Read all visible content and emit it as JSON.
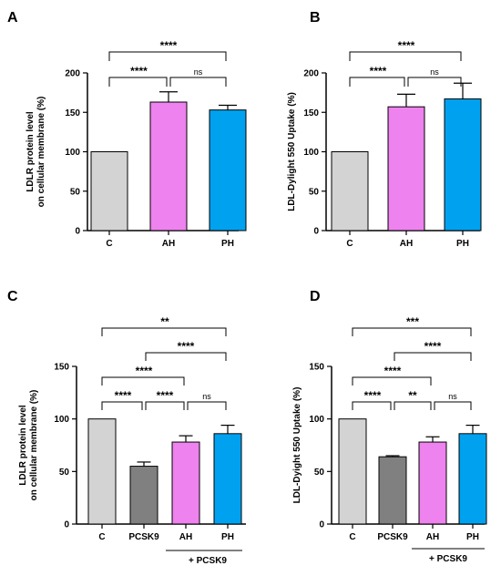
{
  "chart_data": [
    {
      "panel": "A",
      "type": "bar",
      "categories": [
        "C",
        "AH",
        "PH"
      ],
      "values": [
        100,
        163,
        153
      ],
      "errors": [
        0,
        13,
        6
      ],
      "colors": [
        "#d3d3d3",
        "#ee82ee",
        "#00a2f0"
      ],
      "ylabel": [
        "LDLR protein level",
        "on cellular membrane (%)"
      ],
      "ylim": [
        0,
        200
      ],
      "yticks": [
        0,
        50,
        100,
        150,
        200
      ],
      "comparisons": [
        {
          "from": 0,
          "to": 1,
          "label": "****"
        },
        {
          "from": 1,
          "to": 2,
          "label": "ns"
        },
        {
          "from": 0,
          "to": 2,
          "label": "****"
        }
      ]
    },
    {
      "panel": "B",
      "type": "bar",
      "categories": [
        "C",
        "AH",
        "PH"
      ],
      "values": [
        100,
        157,
        167
      ],
      "errors": [
        0,
        16,
        20
      ],
      "colors": [
        "#d3d3d3",
        "#ee82ee",
        "#00a2f0"
      ],
      "ylabel": [
        "LDL-Dylight 550 Uptake (%)"
      ],
      "ylim": [
        0,
        200
      ],
      "yticks": [
        0,
        50,
        100,
        150,
        200
      ],
      "comparisons": [
        {
          "from": 0,
          "to": 1,
          "label": "****"
        },
        {
          "from": 1,
          "to": 2,
          "label": "ns"
        },
        {
          "from": 0,
          "to": 2,
          "label": "****"
        }
      ]
    },
    {
      "panel": "C",
      "type": "bar",
      "categories": [
        "C",
        "PCSK9",
        "AH",
        "PH"
      ],
      "values": [
        100,
        55,
        78,
        86
      ],
      "errors": [
        0,
        4,
        6,
        8
      ],
      "colors": [
        "#d3d3d3",
        "#808080",
        "#ee82ee",
        "#00a2f0"
      ],
      "ylabel": [
        "LDLR protein level",
        "on cellular membrane (%)"
      ],
      "ylim": [
        0,
        150
      ],
      "yticks": [
        0,
        50,
        100,
        150
      ],
      "group_label": "+ PCSK9",
      "comparisons": [
        {
          "from": 0,
          "to": 1,
          "label": "****"
        },
        {
          "from": 1,
          "to": 2,
          "label": "****"
        },
        {
          "from": 2,
          "to": 3,
          "label": "ns"
        },
        {
          "from": 0,
          "to": 2,
          "label": "****"
        },
        {
          "from": 1,
          "to": 3,
          "label": "****"
        },
        {
          "from": 0,
          "to": 3,
          "label": "**"
        }
      ]
    },
    {
      "panel": "D",
      "type": "bar",
      "categories": [
        "C",
        "PCSK9",
        "AH",
        "PH"
      ],
      "values": [
        100,
        64,
        78,
        86
      ],
      "errors": [
        0,
        1,
        5,
        8
      ],
      "colors": [
        "#d3d3d3",
        "#808080",
        "#ee82ee",
        "#00a2f0"
      ],
      "ylabel": [
        "LDL-Dyight 550 Uptake (%)"
      ],
      "ylim": [
        0,
        150
      ],
      "yticks": [
        0,
        50,
        100,
        150
      ],
      "group_label": "+ PCSK9",
      "comparisons": [
        {
          "from": 0,
          "to": 1,
          "label": "****"
        },
        {
          "from": 1,
          "to": 2,
          "label": "**"
        },
        {
          "from": 2,
          "to": 3,
          "label": "ns"
        },
        {
          "from": 0,
          "to": 2,
          "label": "****"
        },
        {
          "from": 1,
          "to": 3,
          "label": "****"
        },
        {
          "from": 0,
          "to": 3,
          "label": "***"
        }
      ]
    }
  ]
}
